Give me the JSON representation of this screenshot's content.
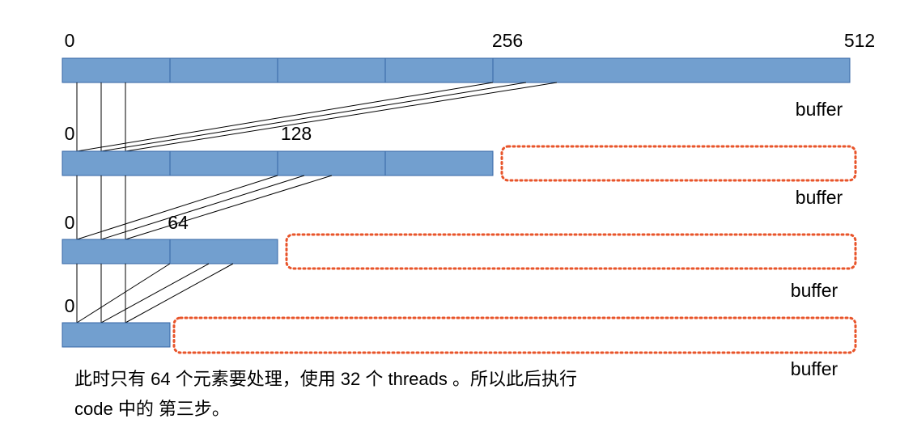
{
  "levels": [
    {
      "labels": [
        "0",
        "256",
        "512"
      ],
      "buffer": "buffer"
    },
    {
      "labels": [
        "0",
        "128"
      ],
      "buffer": "buffer"
    },
    {
      "labels": [
        "0",
        "64"
      ],
      "buffer": "buffer"
    },
    {
      "labels": [
        "0"
      ],
      "buffer": "buffer"
    }
  ],
  "caption": [
    "此时只有 64 个元素要处理，使用 32 个 threads 。所以此后执行",
    "code 中的 第三步。"
  ]
}
